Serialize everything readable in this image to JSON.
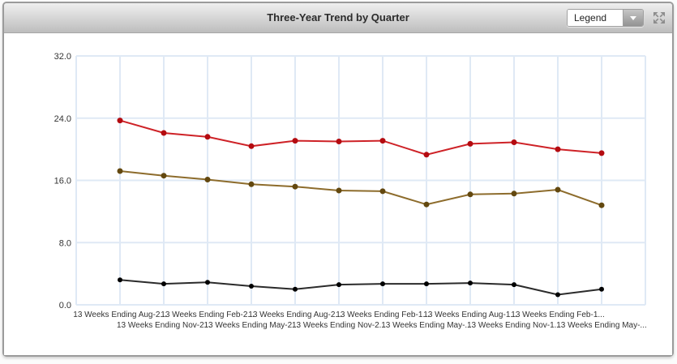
{
  "header": {
    "title": "Three-Year Trend by Quarter",
    "legend_label": "Legend"
  },
  "chart_data": {
    "type": "line",
    "title": "Three-Year Trend by Quarter",
    "legend_position": "collapsed-dropdown",
    "grid": true,
    "grid_color": "#dfe9f5",
    "ylim": [
      0,
      32
    ],
    "y_ticks": [
      0,
      8,
      16,
      24,
      32
    ],
    "y_tick_labels": [
      "0.0",
      "8.0",
      "16.0",
      "24.0",
      "32.0"
    ],
    "x_labels_staggered": true,
    "categories": [
      "13 Weeks Ending Aug-2...",
      "13 Weeks Ending Nov-2...",
      "13 Weeks Ending Feb-2...",
      "13 Weeks Ending May-2...",
      "13 Weeks Ending Aug-2...",
      "13 Weeks Ending Nov-2...",
      "13 Weeks Ending Feb-1...",
      "13 Weeks Ending May-...",
      "13 Weeks Ending Aug-1...",
      "13 Weeks Ending Nov-1...",
      "13 Weeks Ending Feb-1...",
      "13 Weeks Ending May-..."
    ],
    "series": [
      {
        "name": "red-series",
        "color": "#ce2227",
        "marker_color": "#b40b10",
        "values": [
          23.7,
          22.1,
          21.6,
          20.4,
          21.1,
          21.0,
          21.1,
          19.3,
          20.7,
          20.9,
          20.0,
          19.5
        ]
      },
      {
        "name": "olive-series",
        "color": "#8d6c2c",
        "marker_color": "#63480f",
        "values": [
          17.2,
          16.6,
          16.1,
          15.5,
          15.2,
          14.7,
          14.6,
          12.9,
          14.2,
          14.3,
          14.8,
          12.8
        ]
      },
      {
        "name": "black-series",
        "color": "#2b2b2b",
        "marker_color": "#000000",
        "values": [
          3.2,
          2.7,
          2.9,
          2.4,
          2.0,
          2.6,
          2.7,
          2.7,
          2.8,
          2.6,
          1.3,
          2.0
        ]
      }
    ]
  }
}
